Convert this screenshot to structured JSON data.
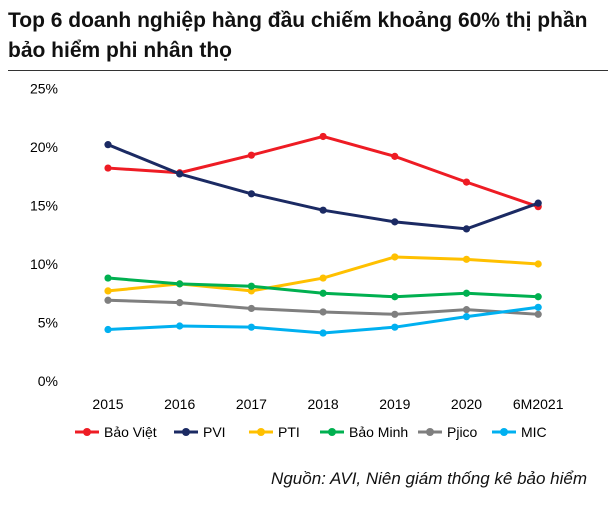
{
  "chart_data": {
    "type": "line",
    "title": "Top 6 doanh nghiệp hàng đầu chiếm khoảng 60% thị phần bảo hiểm phi nhân thọ",
    "xlabel": "",
    "ylabel": "",
    "categories": [
      "2015",
      "2016",
      "2017",
      "2018",
      "2019",
      "2020",
      "6M2021"
    ],
    "ylim": [
      0,
      25
    ],
    "yticks": [
      0,
      5,
      10,
      15,
      20,
      25
    ],
    "ytick_labels": [
      "0%",
      "5%",
      "10%",
      "15%",
      "20%",
      "25%"
    ],
    "grid": false,
    "legend_position": "bottom",
    "series": [
      {
        "name": "Bảo Việt",
        "color": "#ee1c24",
        "values": [
          18.2,
          17.8,
          19.3,
          20.9,
          19.2,
          17.0,
          14.9
        ]
      },
      {
        "name": "PVI",
        "color": "#1b2a63",
        "values": [
          20.2,
          17.7,
          16.0,
          14.6,
          13.6,
          13.0,
          15.2
        ]
      },
      {
        "name": "PTI",
        "color": "#ffc000",
        "values": [
          7.7,
          8.3,
          7.7,
          8.8,
          10.6,
          10.4,
          10.0
        ]
      },
      {
        "name": "Bảo Minh",
        "color": "#00b050",
        "values": [
          8.8,
          8.3,
          8.1,
          7.5,
          7.2,
          7.5,
          7.2
        ]
      },
      {
        "name": "Pjico",
        "color": "#7f7f7f",
        "values": [
          6.9,
          6.7,
          6.2,
          5.9,
          5.7,
          6.1,
          5.7
        ]
      },
      {
        "name": "MIC",
        "color": "#00b0f0",
        "values": [
          4.4,
          4.7,
          4.6,
          4.1,
          4.6,
          5.5,
          6.3
        ]
      }
    ]
  },
  "source": "Nguồn: AVI, Niên giám thống kê bảo hiểm"
}
